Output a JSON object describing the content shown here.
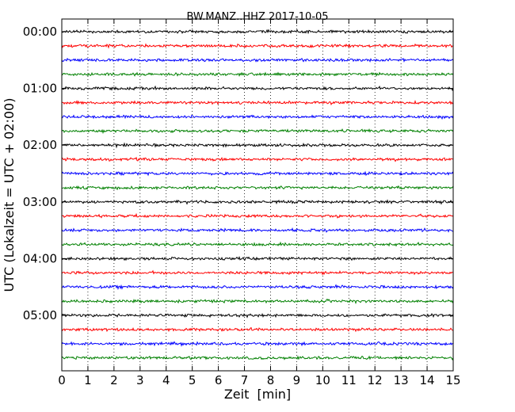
{
  "chart_data": {
    "type": "line",
    "title": "BW.MANZ..HHZ 2017-10-05",
    "xlabel": "Zeit  [min]",
    "ylabel": "UTC (Lokalzeit = UTC + 02:00)",
    "xlim": [
      0,
      15
    ],
    "x_ticks": [
      "0",
      "1",
      "2",
      "3",
      "4",
      "5",
      "6",
      "7",
      "8",
      "9",
      "10",
      "11",
      "12",
      "13",
      "14",
      "15"
    ],
    "y_ticks": [
      "00:00",
      "01:00",
      "02:00",
      "03:00",
      "04:00",
      "05:00"
    ],
    "rows_per_hour": 4,
    "trace_count": 24,
    "trace_colors": [
      "#000000",
      "#ff0000",
      "#0000ff",
      "#008000"
    ],
    "grid": {
      "vertical_dotted": true
    },
    "series": [
      {
        "values": [
          "00:00",
          "00:15",
          "00:30",
          "00:45",
          "01:00",
          "01:15",
          "01:30",
          "01:45",
          "02:00",
          "02:15",
          "02:30",
          "02:45",
          "03:00",
          "03:15",
          "03:30",
          "03:45",
          "04:00",
          "04:15",
          "04:30",
          "04:45",
          "05:00",
          "05:15",
          "05:30",
          "05:45"
        ]
      }
    ]
  }
}
